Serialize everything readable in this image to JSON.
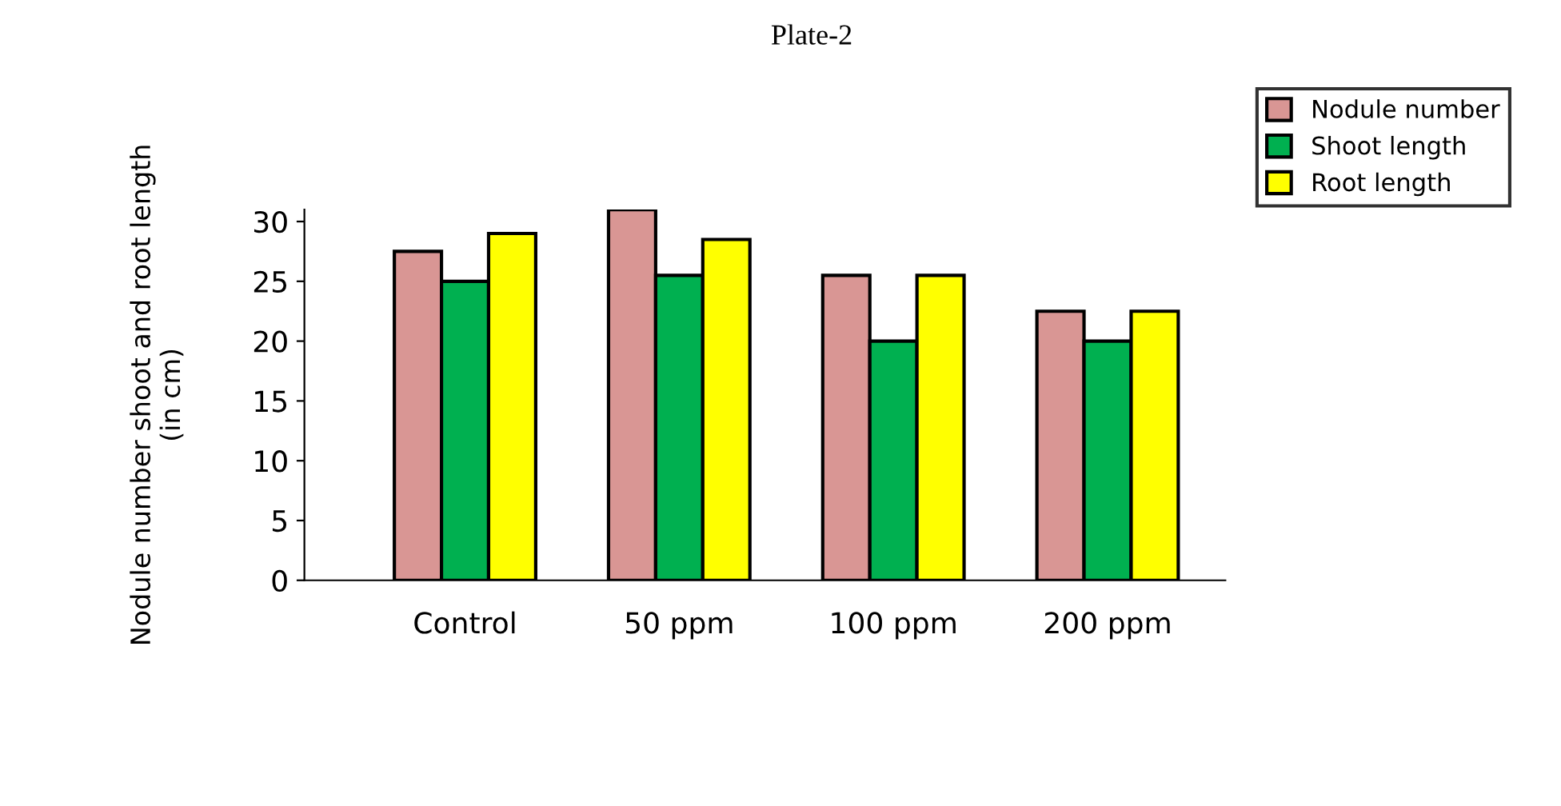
{
  "chart_data": {
    "type": "bar",
    "title": "Plate-2",
    "ylabel": "Nodule number shoot and root length\n(in cm)",
    "categories": [
      "Control",
      "50 ppm",
      "100 ppm",
      "200 ppm"
    ],
    "series": [
      {
        "name": "Nodule number",
        "color": "#d99694",
        "values": [
          27.5,
          31,
          25.5,
          22.5
        ]
      },
      {
        "name": "Shoot length",
        "color": "#00b050",
        "values": [
          25,
          25.5,
          20,
          20
        ]
      },
      {
        "name": "Root length",
        "color": "#ffff00",
        "values": [
          29,
          28.5,
          25.5,
          22.5
        ]
      }
    ],
    "ylim": [
      0,
      31
    ],
    "yticks": [
      0,
      5,
      10,
      15,
      20,
      25,
      30
    ],
    "grid": false,
    "legend": "top right"
  }
}
